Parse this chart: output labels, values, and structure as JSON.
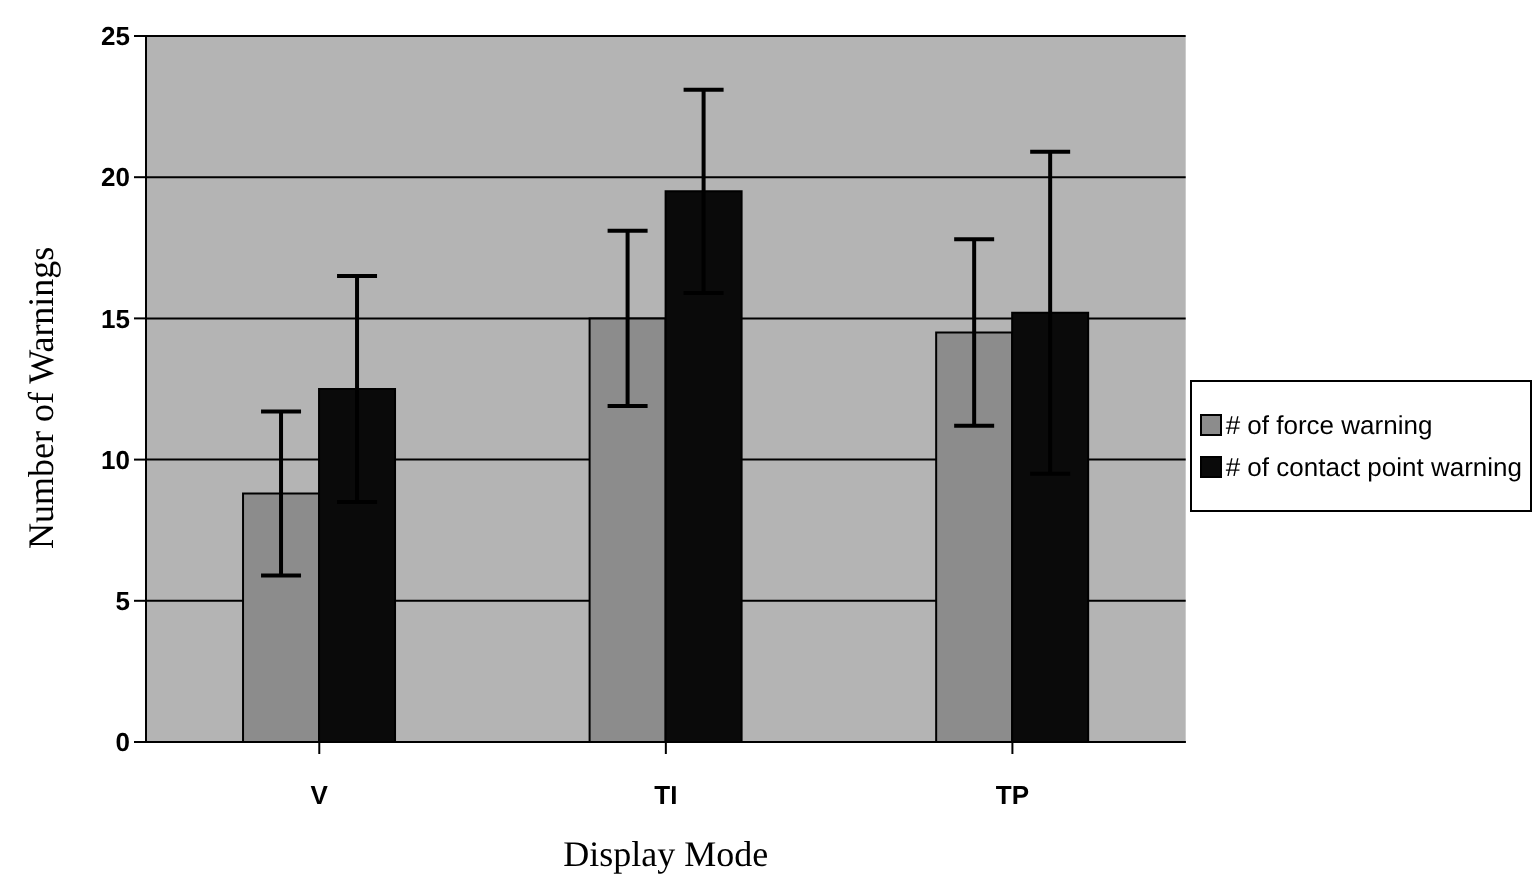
{
  "chart_data": {
    "type": "bar",
    "xlabel": "Display Mode",
    "ylabel": "Number of Warnings",
    "categories": [
      "V",
      "TI",
      "TP"
    ],
    "series": [
      {
        "name": "# of force warning",
        "color": "#8c8c8c",
        "values": [
          8.8,
          15,
          14.5
        ],
        "errors": [
          2.9,
          3.1,
          3.3
        ]
      },
      {
        "name": "# of contact point warning",
        "color": "#0a0a0a",
        "values": [
          12.5,
          19.5,
          15.2
        ],
        "errors": [
          4.0,
          3.6,
          5.7
        ]
      }
    ],
    "ylim": [
      0,
      25
    ],
    "yticks": [
      0,
      5,
      10,
      15,
      20,
      25
    ],
    "grid": "y",
    "legend": "right"
  }
}
